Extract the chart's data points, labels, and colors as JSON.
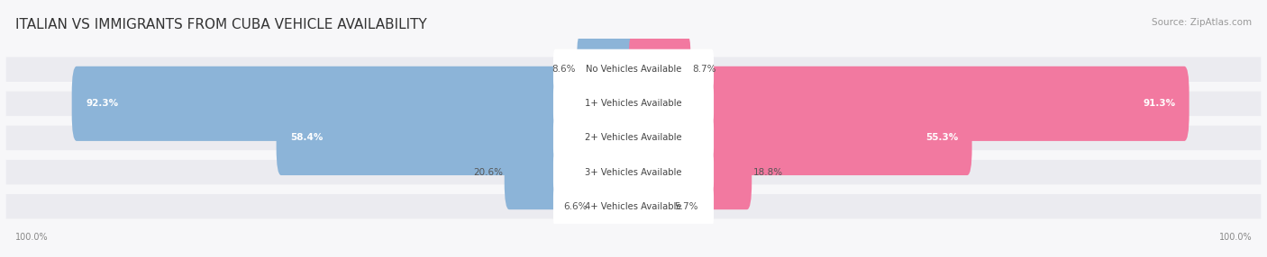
{
  "title": "ITALIAN VS IMMIGRANTS FROM CUBA VEHICLE AVAILABILITY",
  "source": "Source: ZipAtlas.com",
  "categories": [
    "No Vehicles Available",
    "1+ Vehicles Available",
    "2+ Vehicles Available",
    "3+ Vehicles Available",
    "4+ Vehicles Available"
  ],
  "italian_values": [
    8.6,
    92.3,
    58.4,
    20.6,
    6.6
  ],
  "cuba_values": [
    8.7,
    91.3,
    55.3,
    18.8,
    5.7
  ],
  "italian_color": "#8cb4d8",
  "cuba_color": "#f279a0",
  "row_bg_color": "#ebebf0",
  "fig_bg_color": "#f7f7f9",
  "center_label_bg": "#ffffff",
  "title_fontsize": 11,
  "bar_fontsize": 7.5,
  "legend_fontsize": 8.5,
  "source_fontsize": 7.5,
  "max_value": 100.0
}
